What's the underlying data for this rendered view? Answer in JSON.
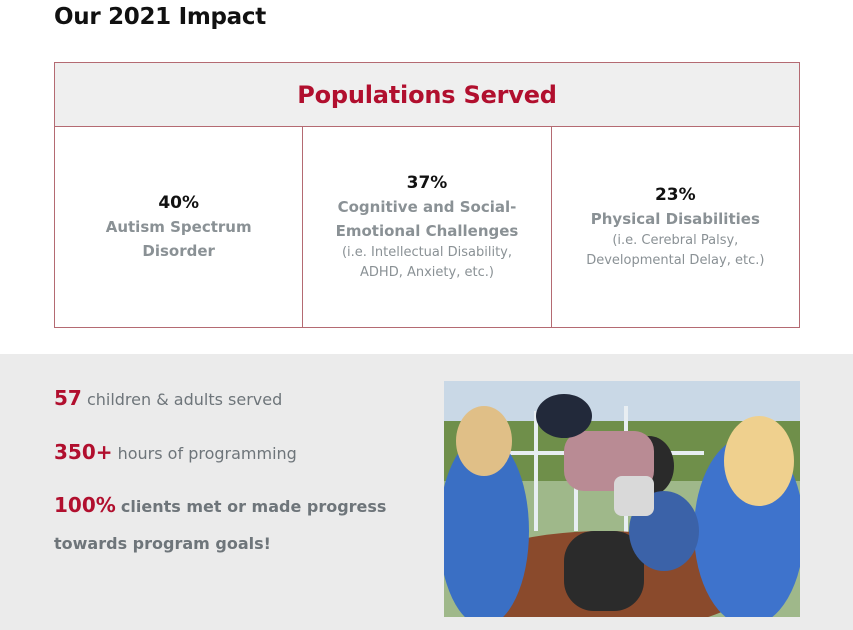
{
  "title": "Our 2021 Impact",
  "populations": {
    "header": "Populations Served",
    "cells": [
      {
        "percent": "40%",
        "label": "Autism Spectrum Disorder",
        "note": ""
      },
      {
        "percent": "37%",
        "label": "Cognitive and Social-Emotional Challenges",
        "note": "(i.e. Intellectual Disability, ADHD, Anxiety, etc.)"
      },
      {
        "percent": "23%",
        "label": "Physical Disabilities",
        "note": "(i.e. Cerebral Palsy, Developmental Delay, etc.)"
      }
    ]
  },
  "stats": [
    {
      "number": "57",
      "text": "children & adults served"
    },
    {
      "number": "350+",
      "text": "hours of programming"
    },
    {
      "number": "100%",
      "text": "clients met or made progress",
      "continuation": "towards program goals!"
    }
  ],
  "colors": {
    "accent": "#b10f2e",
    "muted_text": "#8a9195",
    "band_bg": "#ebebeb",
    "border": "#b46a72"
  }
}
